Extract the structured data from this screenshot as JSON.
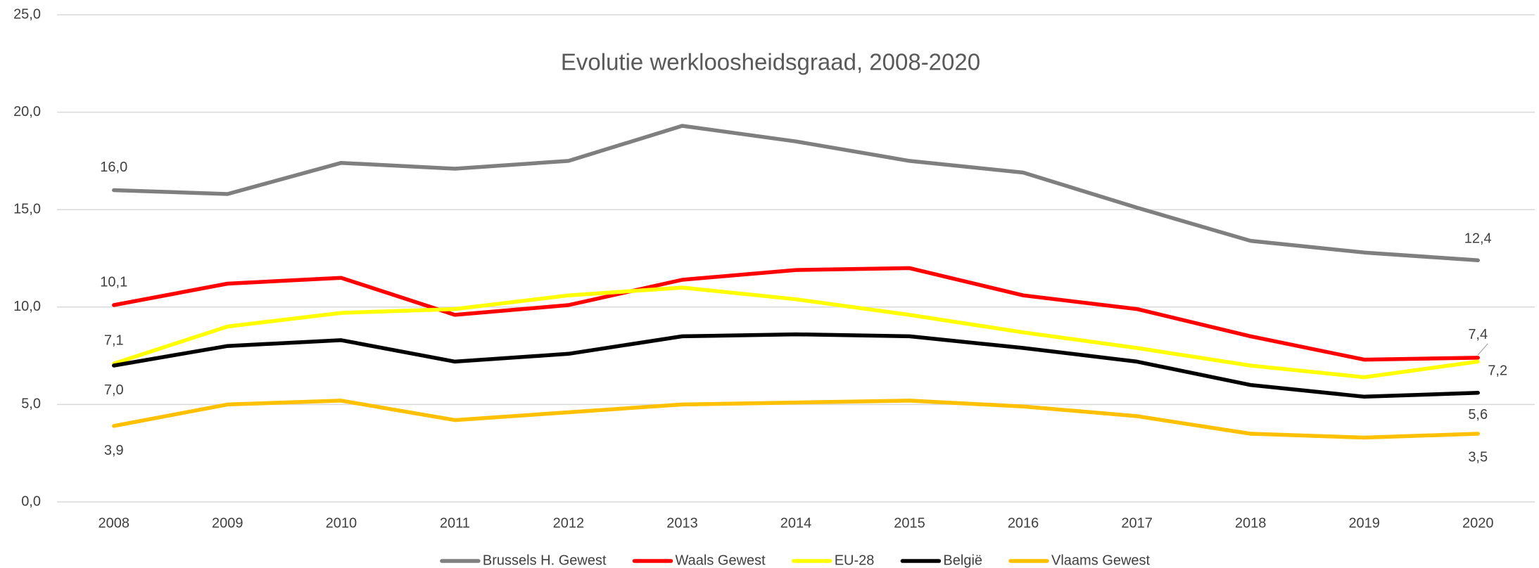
{
  "chart_data": {
    "type": "line",
    "title": "Evolutie werkloosheidsgraad, 2008-2020",
    "categories": [
      "2008",
      "2009",
      "2010",
      "2011",
      "2012",
      "2013",
      "2014",
      "2015",
      "2016",
      "2017",
      "2018",
      "2019",
      "2020"
    ],
    "ylim": [
      0,
      25
    ],
    "yticks": [
      {
        "value": 0,
        "label": "0,0"
      },
      {
        "value": 5,
        "label": "5,0"
      },
      {
        "value": 10,
        "label": "10,0"
      },
      {
        "value": 15,
        "label": "15,0"
      },
      {
        "value": 20,
        "label": "20,0"
      },
      {
        "value": 25,
        "label": "25,0"
      }
    ],
    "grid": true,
    "legend": "bottom",
    "series": [
      {
        "name": "Brussels H. Gewest",
        "color": "#7f7f7f",
        "values": [
          16.0,
          15.8,
          17.4,
          17.1,
          17.5,
          19.3,
          18.5,
          17.5,
          16.9,
          15.1,
          13.4,
          12.8,
          12.4
        ],
        "value_labels": [
          "16,0",
          null,
          null,
          null,
          null,
          null,
          null,
          null,
          null,
          null,
          null,
          null,
          "12,4"
        ]
      },
      {
        "name": "Waals Gewest",
        "color": "#ff0000",
        "values": [
          10.1,
          11.2,
          11.5,
          9.6,
          10.1,
          11.4,
          11.9,
          12.0,
          10.6,
          9.9,
          8.5,
          7.3,
          7.4
        ],
        "value_labels": [
          "10,1",
          null,
          null,
          null,
          null,
          null,
          null,
          null,
          null,
          null,
          null,
          null,
          "7,4"
        ]
      },
      {
        "name": "EU-28",
        "color": "#ffff00",
        "values": [
          7.1,
          9.0,
          9.7,
          9.9,
          10.6,
          11.0,
          10.4,
          9.6,
          8.7,
          7.9,
          7.0,
          6.4,
          7.2
        ],
        "value_labels": [
          "7,1",
          null,
          null,
          null,
          null,
          null,
          null,
          null,
          null,
          null,
          null,
          null,
          "7,2"
        ]
      },
      {
        "name": "België",
        "color": "#000000",
        "values": [
          7.0,
          8.0,
          8.3,
          7.2,
          7.6,
          8.5,
          8.6,
          8.5,
          7.9,
          7.2,
          6.0,
          5.4,
          5.6
        ],
        "value_labels": [
          "7,0",
          null,
          null,
          null,
          null,
          null,
          null,
          null,
          null,
          null,
          null,
          null,
          "5,6"
        ]
      },
      {
        "name": "Vlaams Gewest",
        "color": "#ffc000",
        "values": [
          3.9,
          5.0,
          5.2,
          4.2,
          4.6,
          5.0,
          5.1,
          5.2,
          4.9,
          4.4,
          3.5,
          3.3,
          3.5
        ],
        "value_labels": [
          "3,9",
          null,
          null,
          null,
          null,
          null,
          null,
          null,
          null,
          null,
          null,
          null,
          "3,5"
        ]
      }
    ]
  }
}
